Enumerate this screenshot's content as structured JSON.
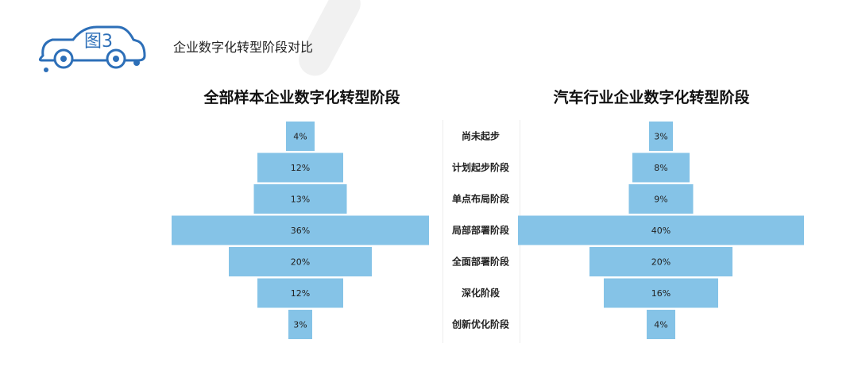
{
  "header": {
    "badge_label": "图3",
    "subtitle": "企业数字化转型阶段对比"
  },
  "colors": {
    "bar": "#85c3e7",
    "badge": "#2d6fb8"
  },
  "chart_data": {
    "type": "bar",
    "orientation": "horizontal-butterfly",
    "categories": [
      "尚未起步",
      "计划起步阶段",
      "单点布局阶段",
      "局部部署阶段",
      "全面部署阶段",
      "深化阶段",
      "创新优化阶段"
    ],
    "series": [
      {
        "name": "全部样本企业数字化转型阶段",
        "values": [
          4,
          12,
          13,
          36,
          20,
          12,
          3
        ],
        "labels": [
          "4%",
          "12%",
          "13%",
          "36%",
          "20%",
          "12%",
          "3%"
        ]
      },
      {
        "name": "汽车行业企业数字化转型阶段",
        "values": [
          3,
          8,
          9,
          40,
          20,
          16,
          4
        ],
        "labels": [
          "3%",
          "8%",
          "9%",
          "40%",
          "20%",
          "16%",
          "4%"
        ]
      }
    ],
    "unit": "%"
  }
}
